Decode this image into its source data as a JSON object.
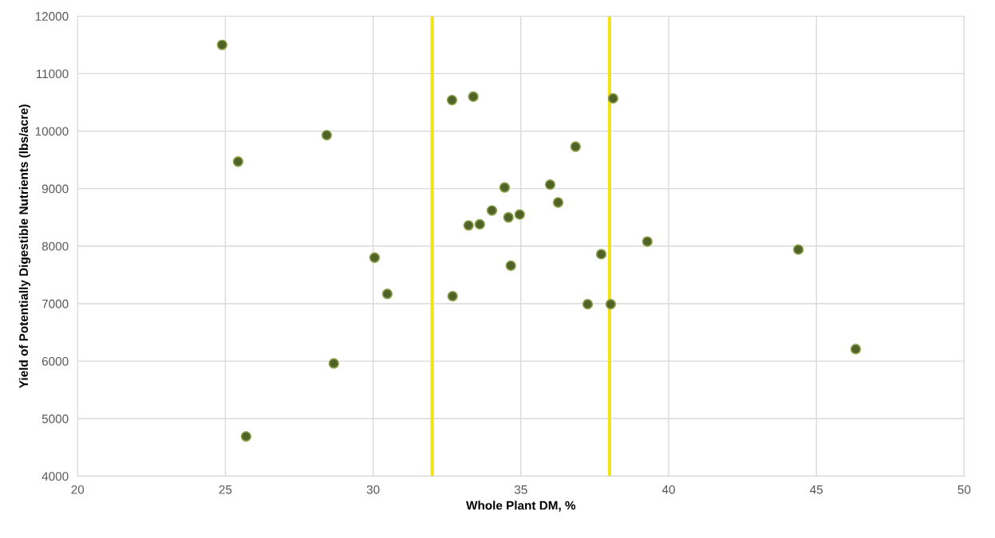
{
  "chart_data": {
    "type": "scatter",
    "xlabel": "Whole Plant DM, %",
    "ylabel": "Yield of Potentially Digestible Nutrients (lbs/acre)",
    "x": [
      24.89,
      25.7,
      25.43,
      28.43,
      28.67,
      30.05,
      30.48,
      32.67,
      33.39,
      32.69,
      33.23,
      33.61,
      34.02,
      34.45,
      34.58,
      34.96,
      34.66,
      35.99,
      36.26,
      36.85,
      38.12,
      37.72,
      37.26,
      38.04,
      39.28,
      44.39,
      46.33
    ],
    "series": [
      {
        "color": "#4f6228",
        "values": [
          11500,
          4690,
          9470,
          9930,
          5960,
          7800,
          7170,
          10540,
          10600,
          7130,
          8360,
          8380,
          8620,
          9020,
          8500,
          8550,
          7660,
          9070,
          8760,
          9730,
          10570,
          7860,
          6990,
          6990,
          8080,
          7940,
          6210
        ]
      }
    ],
    "xlim": [
      20,
      50
    ],
    "xticks": [
      20,
      25,
      30,
      35,
      40,
      45,
      50
    ],
    "ylim": [
      4000,
      12000
    ],
    "yticks": [
      4000,
      5000,
      6000,
      7000,
      8000,
      9000,
      10000,
      11000,
      12000
    ],
    "grid": true,
    "legend": false,
    "marker": "circle",
    "ref_lines": [
      {
        "axis": "x",
        "value": 32,
        "color": "#f2e21a",
        "line_style": "solid"
      },
      {
        "axis": "x",
        "value": 38,
        "color": "#f2e21a",
        "line_style": "solid"
      }
    ]
  }
}
